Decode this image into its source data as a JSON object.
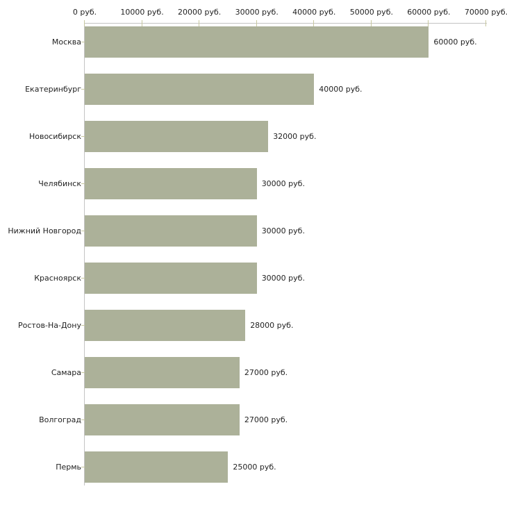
{
  "chart_data": {
    "type": "bar",
    "orientation": "horizontal",
    "categories": [
      "Москва",
      "Екатеринбург",
      "Новосибирск",
      "Челябинск",
      "Нижний Новгород",
      "Красноярск",
      "Ростов-На-Дону",
      "Самара",
      "Волгоград",
      "Пермь"
    ],
    "values": [
      60000,
      40000,
      32000,
      30000,
      30000,
      30000,
      28000,
      27000,
      27000,
      25000
    ],
    "value_labels": [
      "60000 руб.",
      "40000 руб.",
      "32000 руб.",
      "30000 руб.",
      "30000 руб.",
      "30000 руб.",
      "28000 руб.",
      "27000 руб.",
      "27000 руб.",
      "25000 руб."
    ],
    "x_axis": {
      "position": "top",
      "unit": "руб.",
      "tick_values": [
        0,
        10000,
        20000,
        30000,
        40000,
        50000,
        60000,
        70000
      ],
      "tick_labels": [
        "0 руб.",
        "10000 руб.",
        "20000 руб.",
        "30000 руб.",
        "40000 руб.",
        "50000 руб.",
        "60000 руб.",
        "70000 руб."
      ],
      "range": [
        0,
        70000
      ]
    },
    "grid": false,
    "legend": false,
    "colors": {
      "bar": "#acb199",
      "axis_line": "#c3c3c3",
      "tick": "#c8c8a0",
      "text": "#222222"
    }
  }
}
